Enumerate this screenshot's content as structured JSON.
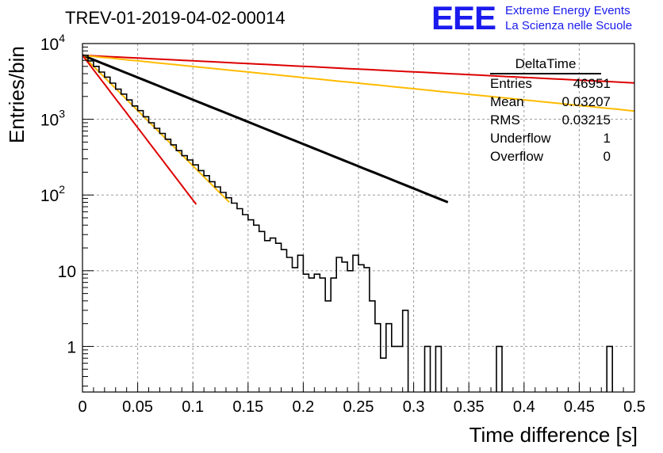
{
  "header": {
    "title": "TREV-01-2019-04-02-00014",
    "logo": "EEE",
    "logo_line1": "Extreme Energy Events",
    "logo_line2": "La Scienza nelle Scuole"
  },
  "stats_box": {
    "name": "DeltaTime",
    "rows": [
      {
        "label": "Entries",
        "value": "46951"
      },
      {
        "label": "Mean",
        "value": "0.03207"
      },
      {
        "label": "RMS",
        "value": "0.03215"
      },
      {
        "label": "Underflow",
        "value": "1"
      },
      {
        "label": "Overflow",
        "value": "0"
      }
    ]
  },
  "chart_data": {
    "type": "line",
    "xlabel": "Time difference [s]",
    "ylabel": "Entries/bin",
    "xlim": [
      0,
      0.5
    ],
    "ylim": [
      0.25,
      10000
    ],
    "log_y": true,
    "grid": true,
    "x_ticks": [
      "0",
      "0.05",
      "0.1",
      "0.15",
      "0.2",
      "0.25",
      "0.3",
      "0.35",
      "0.4",
      "0.45",
      "0.5"
    ],
    "y_ticks": [
      {
        "value": 1,
        "label": "1"
      },
      {
        "value": 10,
        "label": "10"
      },
      {
        "value": 100,
        "label": "10",
        "exp": "2"
      },
      {
        "value": 1000,
        "label": "10",
        "exp": "3"
      },
      {
        "value": 10000,
        "label": "10",
        "exp": "4"
      }
    ],
    "histogram": {
      "color": "#000000",
      "bin_width": 0.005,
      "values": [
        7000,
        5900,
        5000,
        4200,
        3600,
        3000,
        2500,
        2150,
        1800,
        1500,
        1300,
        1080,
        900,
        760,
        650,
        545,
        460,
        385,
        330,
        290,
        250,
        210,
        180,
        150,
        128,
        108,
        92,
        78,
        66,
        55,
        47,
        40,
        33,
        25,
        27,
        23,
        19,
        15,
        11,
        16,
        9,
        8,
        9,
        8,
        4,
        8,
        15,
        13,
        10,
        16,
        12,
        11,
        4,
        2,
        0.7,
        2,
        1,
        1,
        3,
        0,
        0,
        0,
        1,
        0,
        1,
        0,
        0,
        0,
        0,
        0,
        0,
        0,
        0,
        0,
        0,
        1,
        0,
        0,
        0,
        0,
        0,
        0,
        0,
        0,
        0,
        0,
        0,
        0,
        0,
        0,
        0,
        0,
        0,
        0,
        0,
        1,
        0,
        0,
        0,
        0
      ]
    },
    "fits": [
      {
        "color": "#000000",
        "y0": 7000,
        "slope_per_s": -13.5,
        "x_end": 0.331
      },
      {
        "color": "#dd0000",
        "y0": 7000,
        "slope_per_s": -1.68,
        "x_end": 0.5
      },
      {
        "color": "#ffbb00",
        "y0": 7000,
        "slope_per_s": -3.39,
        "x_end": 0.5
      },
      {
        "color": "#ffbb00",
        "y0": 7000,
        "slope_per_s": -33.6,
        "x_end": 0.133
      },
      {
        "color": "#dd0000",
        "y0": 7000,
        "slope_per_s": -44.0,
        "x_end": 0.103
      }
    ]
  }
}
